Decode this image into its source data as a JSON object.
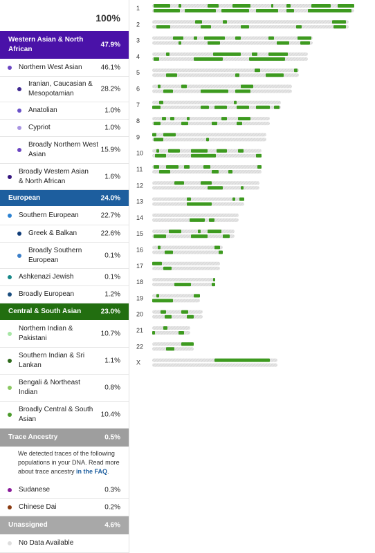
{
  "header": {
    "total": "100%"
  },
  "rows": [
    {
      "label": "Western Asian & North African",
      "percent": "47.9%",
      "color": "#4a12a8"
    },
    {
      "label": "Northern West Asian",
      "percent": "46.1%",
      "color": "#6b45c2"
    },
    {
      "label": "Iranian, Caucasian & Mesopotamian",
      "percent": "28.2%",
      "color": "#3f2890"
    },
    {
      "label": "Anatolian",
      "percent": "1.0%",
      "color": "#6a52c8"
    },
    {
      "label": "Cypriot",
      "percent": "1.0%",
      "color": "#a995e2"
    },
    {
      "label": "Broadly Northern West Asian",
      "percent": "15.9%",
      "color": "#6b45c2"
    },
    {
      "label": "Broadly Western Asian & North African",
      "percent": "1.6%",
      "color": "#35157e"
    },
    {
      "label": "European",
      "percent": "24.0%",
      "color": "#1d5e9e"
    },
    {
      "label": "Southern European",
      "percent": "22.7%",
      "color": "#2c82d2"
    },
    {
      "label": "Greek & Balkan",
      "percent": "22.6%",
      "color": "#0f3c78"
    },
    {
      "label": "Broadly Southern European",
      "percent": "0.1%",
      "color": "#3b7ec8"
    },
    {
      "label": "Ashkenazi Jewish",
      "percent": "0.1%",
      "color": "#178888"
    },
    {
      "label": "Broadly European",
      "percent": "1.2%",
      "color": "#1a4d7e"
    },
    {
      "label": "Central & South Asian",
      "percent": "23.0%",
      "color": "#226e10"
    },
    {
      "label": "Northern Indian & Pakistani",
      "percent": "10.7%",
      "color": "#a7e6a5"
    },
    {
      "label": "Southern Indian & Sri Lankan",
      "percent": "1.1%",
      "color": "#2e6a1b"
    },
    {
      "label": "Bengali & Northeast Indian",
      "percent": "0.8%",
      "color": "#8bc862"
    },
    {
      "label": "Broadly Central & South Asian",
      "percent": "10.4%",
      "color": "#4a9b2b"
    },
    {
      "label": "Trace Ancestry",
      "percent": "0.5%",
      "color": "#9e9e9e"
    },
    {
      "label": "Sudanese",
      "percent": "0.3%",
      "color": "#8a1b9a"
    },
    {
      "label": "Chinese Dai",
      "percent": "0.2%",
      "color": "#8a3a10"
    },
    {
      "label": "Unassigned",
      "percent": "4.6%",
      "color": "#a8a8a8"
    },
    {
      "label": "No Data Available",
      "color": "#dddddd"
    }
  ],
  "trace_note": {
    "text": "We detected traces of the following populations in your DNA. Read more about trace ancestry ",
    "link": "in the FAQ",
    "end": "."
  },
  "chromosomes": [
    "1",
    "2",
    "3",
    "4",
    "5",
    "6",
    "7",
    "8",
    "9",
    "10",
    "11",
    "12",
    "13",
    "14",
    "15",
    "16",
    "17",
    "18",
    "19",
    "20",
    "21",
    "22",
    "X"
  ]
}
